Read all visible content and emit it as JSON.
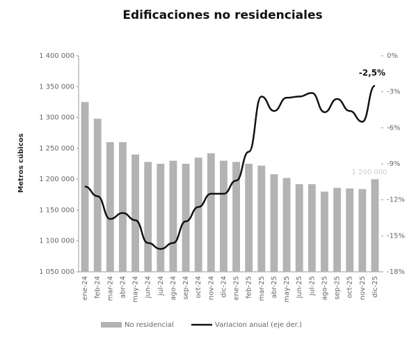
{
  "chart_data": {
    "type": "bar-line",
    "title": "Edificaciones no residenciales",
    "y_label": "Metros cúbicos",
    "categories": [
      "ene-24",
      "feb-24",
      "mar-24",
      "abr-24",
      "may-24",
      "jun-24",
      "jul-24",
      "ago-24",
      "sep-24",
      "oct-24",
      "nov-24",
      "dic-24",
      "ene-25",
      "feb-25",
      "mar-25",
      "abr-25",
      "may-25",
      "jun-25",
      "jul-25",
      "ago-25",
      "sep-25",
      "oct-25",
      "nov-25",
      "dic-25"
    ],
    "series": [
      {
        "name": "No residencial",
        "type": "bar",
        "color": "#b3b3b3",
        "values": [
          1325000,
          1298000,
          1260000,
          1260000,
          1240000,
          1228000,
          1225000,
          1230000,
          1225000,
          1235000,
          1242000,
          1230000,
          1228000,
          1225000,
          1222000,
          1208000,
          1202000,
          1192000,
          1192000,
          1180000,
          1186000,
          1185000,
          1184000,
          1200000
        ],
        "value_labels": [
          null,
          null,
          null,
          null,
          null,
          null,
          null,
          null,
          null,
          null,
          null,
          null,
          null,
          null,
          null,
          null,
          null,
          null,
          null,
          null,
          null,
          null,
          null,
          "1 200 000"
        ]
      },
      {
        "name": "Variacion anual (eje der.)",
        "type": "line",
        "axis": "y2",
        "color": "#111111",
        "values": [
          -10.9,
          -11.7,
          -13.6,
          -13.1,
          -13.7,
          -15.6,
          -16.1,
          -15.6,
          -13.8,
          -12.6,
          -11.5,
          -11.5,
          -10.4,
          -8.0,
          -3.4,
          -4.6,
          -3.5,
          -3.4,
          -3.1,
          -4.7,
          -3.6,
          -4.6,
          -5.5,
          -2.5
        ],
        "value_labels": [
          null,
          null,
          null,
          null,
          null,
          null,
          null,
          null,
          null,
          null,
          null,
          null,
          null,
          null,
          null,
          null,
          null,
          null,
          null,
          null,
          null,
          null,
          null,
          "-2,5%"
        ]
      }
    ],
    "ylim": [
      1050000,
      1400000
    ],
    "yticks": [
      {
        "value": 1050000,
        "label": "1 050 000"
      },
      {
        "value": 1100000,
        "label": "1 100 000"
      },
      {
        "value": 1150000,
        "label": "1 150 000"
      },
      {
        "value": 1200000,
        "label": "1 200 000"
      },
      {
        "value": 1250000,
        "label": "1 250 000"
      },
      {
        "value": 1300000,
        "label": "1 300 000"
      },
      {
        "value": 1350000,
        "label": "1 350 000"
      },
      {
        "value": 1400000,
        "label": "1 400 000"
      }
    ],
    "y2lim": [
      -18,
      0
    ],
    "y2ticks": [
      {
        "value": 0,
        "label": "0%"
      },
      {
        "value": -3,
        "label": "-3%"
      },
      {
        "value": -6,
        "label": "-6%"
      },
      {
        "value": -9,
        "label": "-9%"
      },
      {
        "value": -12,
        "label": "-12%"
      },
      {
        "value": -15,
        "label": "-15%"
      },
      {
        "value": -18,
        "label": "-18%"
      }
    ],
    "grid": false
  }
}
